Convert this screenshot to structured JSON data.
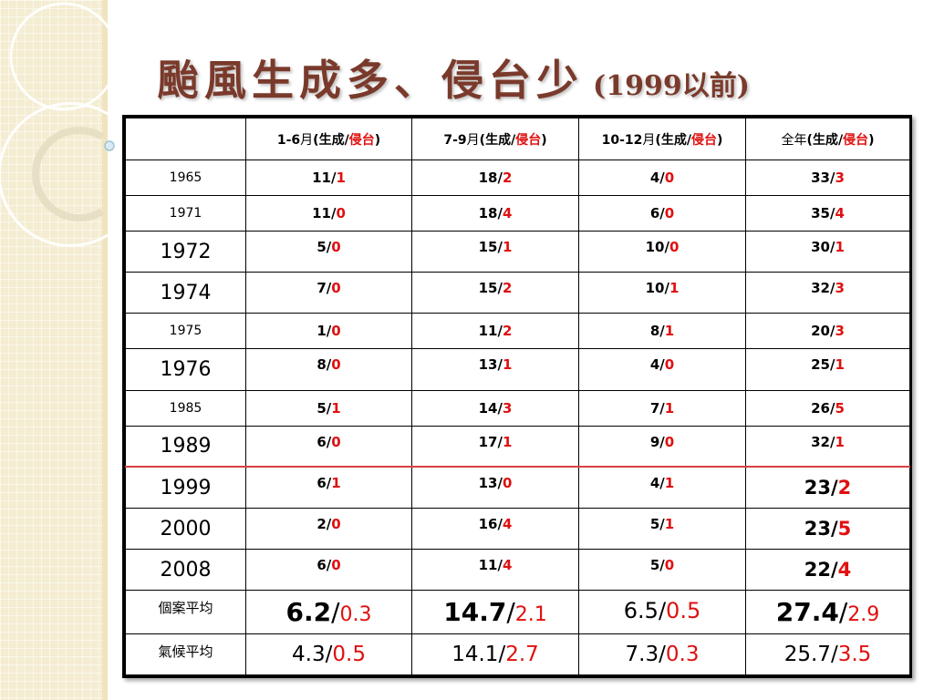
{
  "title": {
    "main": "颱風生成多、侵台少",
    "suffix": "(1999以前)"
  },
  "colors": {
    "title": "#7a3a2b",
    "invasion_red": "#e01010",
    "divider_line": "#d94040",
    "side_band": "#f4edd2"
  },
  "table": {
    "headers": [
      {
        "range": "",
        "name": "",
        "open": "",
        "gen": "",
        "sep": "",
        "inv": "",
        "close": ""
      },
      {
        "range": "1-6",
        "name": "月",
        "open": "(",
        "gen": "生成",
        "sep": "/",
        "inv": "侵台",
        "close": ")"
      },
      {
        "range": "7-9",
        "name": "月",
        "open": "(",
        "gen": "生成",
        "sep": "/",
        "inv": "侵台",
        "close": ")"
      },
      {
        "range": "10-12",
        "name": "月",
        "open": "(",
        "gen": "生成",
        "sep": "/",
        "inv": "侵台",
        "close": ")"
      },
      {
        "range": "",
        "name": "全年",
        "open": "(",
        "gen": "生成",
        "sep": "/",
        "inv": "侵台",
        "close": ")"
      }
    ],
    "rows": [
      {
        "year": "1965",
        "cells": [
          [
            "11",
            "1"
          ],
          [
            "18",
            "2"
          ],
          [
            "4",
            "0"
          ],
          [
            "33",
            "3"
          ]
        ]
      },
      {
        "year": "1971",
        "cells": [
          [
            "11",
            "0"
          ],
          [
            "18",
            "4"
          ],
          [
            "6",
            "0"
          ],
          [
            "35",
            "4"
          ]
        ]
      },
      {
        "year": "1972",
        "cells": [
          [
            "5",
            "0"
          ],
          [
            "15",
            "1"
          ],
          [
            "10",
            "0"
          ],
          [
            "30",
            "1"
          ]
        ]
      },
      {
        "year": "1974",
        "cells": [
          [
            "7",
            "0"
          ],
          [
            "15",
            "2"
          ],
          [
            "10",
            "1"
          ],
          [
            "32",
            "3"
          ]
        ]
      },
      {
        "year": "1975",
        "cells": [
          [
            "1",
            "0"
          ],
          [
            "11",
            "2"
          ],
          [
            "8",
            "1"
          ],
          [
            "20",
            "3"
          ]
        ]
      },
      {
        "year": "1976",
        "cells": [
          [
            "8",
            "0"
          ],
          [
            "13",
            "1"
          ],
          [
            "4",
            "0"
          ],
          [
            "25",
            "1"
          ]
        ]
      },
      {
        "year": "1985",
        "cells": [
          [
            "5",
            "1"
          ],
          [
            "14",
            "3"
          ],
          [
            "7",
            "1"
          ],
          [
            "26",
            "5"
          ]
        ]
      },
      {
        "year": "1989",
        "cells": [
          [
            "6",
            "0"
          ],
          [
            "17",
            "1"
          ],
          [
            "9",
            "0"
          ],
          [
            "32",
            "1"
          ]
        ]
      },
      {
        "year": "1999",
        "cells": [
          [
            "6",
            "1"
          ],
          [
            "13",
            "0"
          ],
          [
            "4",
            "1"
          ],
          [
            "23",
            "2"
          ]
        ]
      },
      {
        "year": "2000",
        "cells": [
          [
            "2",
            "0"
          ],
          [
            "16",
            "4"
          ],
          [
            "5",
            "1"
          ],
          [
            "23",
            "5"
          ]
        ]
      },
      {
        "year": "2008",
        "cells": [
          [
            "6",
            "0"
          ],
          [
            "11",
            "4"
          ],
          [
            "5",
            "0"
          ],
          [
            "22",
            "4"
          ]
        ]
      }
    ],
    "case_avg": {
      "label": "個案平均",
      "cells": [
        [
          "6.2",
          "0.3"
        ],
        [
          "14.7",
          "2.1"
        ],
        [
          "6.5",
          "0.5"
        ],
        [
          "27.4",
          "2.9"
        ]
      ]
    },
    "climate_avg": {
      "label": "氣候平均",
      "cells": [
        [
          "4.3",
          "0.5"
        ],
        [
          "14.1",
          "2.7"
        ],
        [
          "7.3",
          "0.3"
        ],
        [
          "25.7",
          "3.5"
        ]
      ]
    }
  }
}
